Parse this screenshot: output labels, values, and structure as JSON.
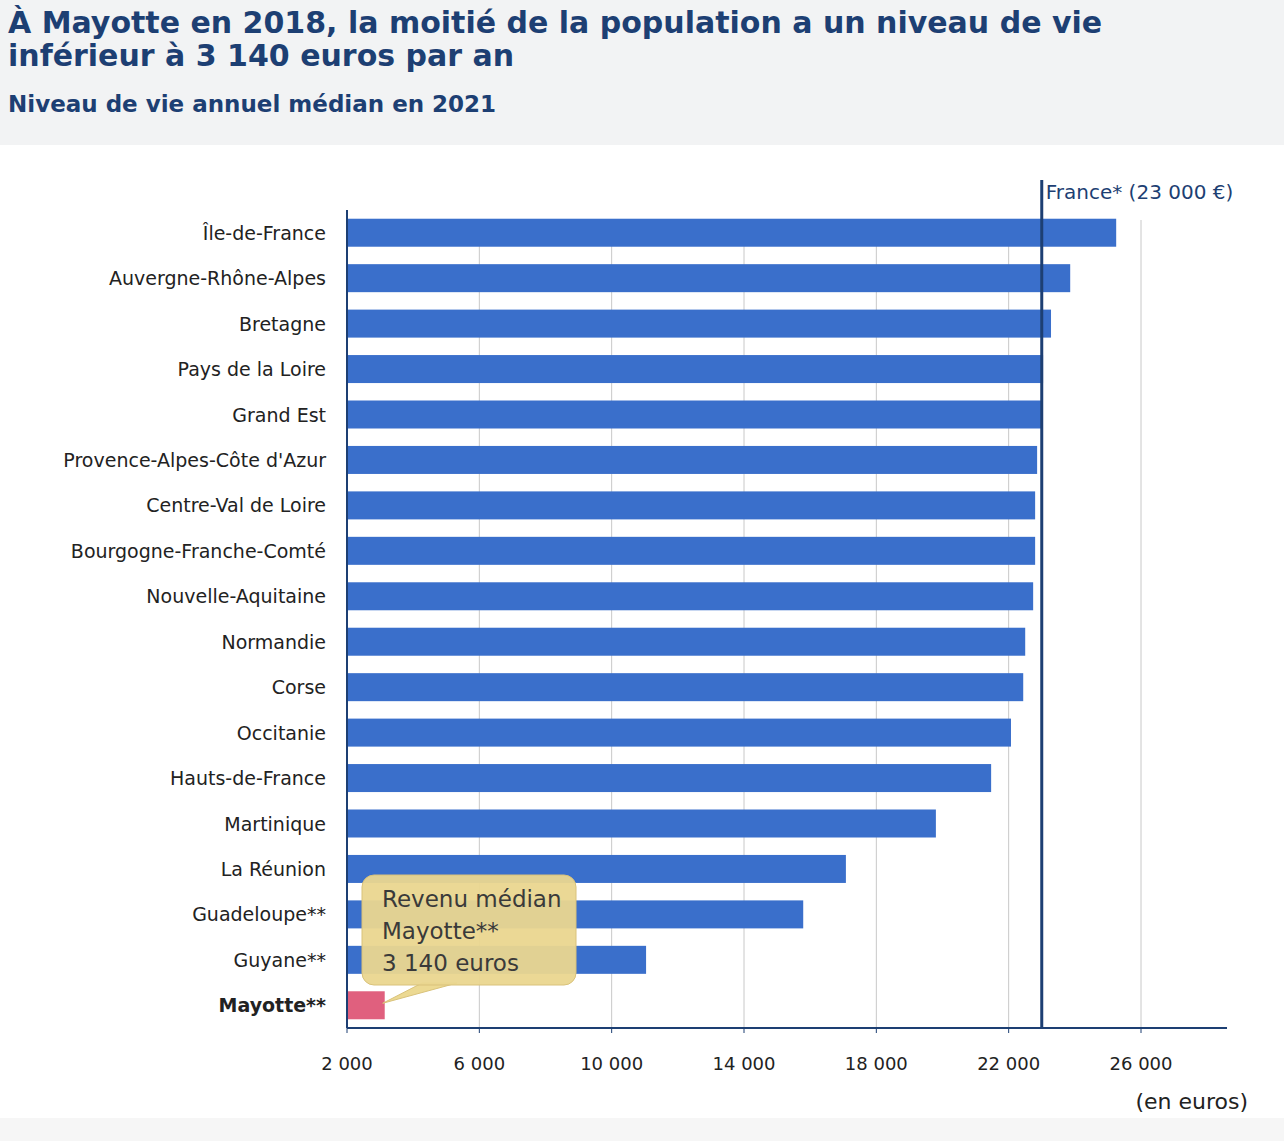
{
  "chart_data": {
    "type": "bar",
    "orientation": "horizontal",
    "title": "À Mayotte en 2018, la moitié de la population a un niveau de vie inférieur à 3 140 euros par an",
    "subtitle": "Niveau de vie annuel médian en 2021",
    "x_label": "(en euros)",
    "categories": [
      "Île-de-France",
      "Auvergne-Rhône-Alpes",
      "Bretagne",
      "Pays de la Loire",
      "Grand Est",
      "Provence-Alpes-Côte d'Azur",
      "Centre-Val de Loire",
      "Bourgogne-Franche-Comté",
      "Nouvelle-Aquitaine",
      "Normandie",
      "Corse",
      "Occitanie",
      "Hauts-de-France",
      "Martinique",
      "La Réunion",
      "Guadeloupe**",
      "Guyane**",
      "Mayotte**"
    ],
    "values": [
      25250,
      23860,
      23280,
      23040,
      23010,
      22860,
      22800,
      22800,
      22740,
      22500,
      22440,
      22070,
      21470,
      19800,
      17080,
      15790,
      11040,
      3140
    ],
    "colors": [
      "#3a6fcb",
      "#3a6fcb",
      "#3a6fcb",
      "#3a6fcb",
      "#3a6fcb",
      "#3a6fcb",
      "#3a6fcb",
      "#3a6fcb",
      "#3a6fcb",
      "#3a6fcb",
      "#3a6fcb",
      "#3a6fcb",
      "#3a6fcb",
      "#3a6fcb",
      "#3a6fcb",
      "#3a6fcb",
      "#3a6fcb",
      "#e0607e"
    ],
    "xlim": [
      2000,
      28600
    ],
    "xticks": [
      {
        "value": 2000,
        "label": "2 000"
      },
      {
        "value": 6000,
        "label": "6 000"
      },
      {
        "value": 10000,
        "label": "10 000"
      },
      {
        "value": 14000,
        "label": "14 000"
      },
      {
        "value": 18000,
        "label": "18 000"
      },
      {
        "value": 22000,
        "label": "22 000"
      },
      {
        "value": 26000,
        "label": "26 000"
      }
    ],
    "grid": true,
    "annotations": [
      {
        "text": "France* (23 000 €)",
        "x": 23000
      },
      {
        "text": [
          "Revenu médian",
          "Mayotte**",
          "3 140 euros"
        ],
        "category": "Mayotte**"
      }
    ]
  }
}
